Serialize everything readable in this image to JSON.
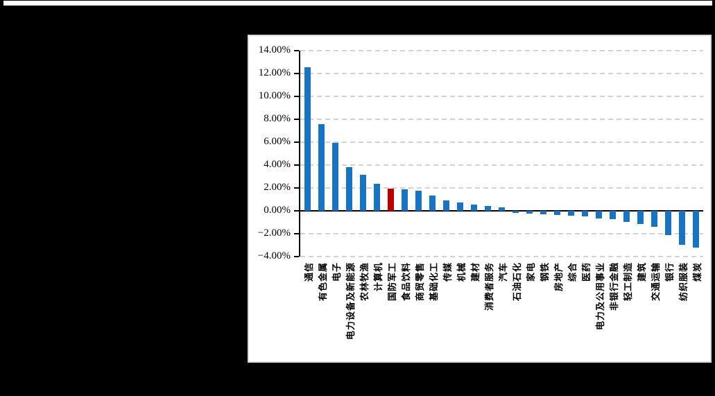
{
  "page": {
    "background_color": "#000000",
    "top_strip_color": "#ffffff",
    "panel_background": "#ffffff",
    "panel_border_color": "#d9d9d9"
  },
  "chart_data": {
    "type": "bar",
    "title": "",
    "legend": "none",
    "grid": "dashed-horizontal",
    "unit": "%",
    "bar_color": "#1774c4",
    "highlight": {
      "index": 6,
      "category": "国防军工",
      "color": "#c00000"
    },
    "categories": [
      "通信",
      "有色金属",
      "电子",
      "电力设备及新能源",
      "农林牧渔",
      "计算机",
      "国防军工",
      "食品饮料",
      "商贸零售",
      "基础化工",
      "传媒",
      "机械",
      "建材",
      "消费者服务",
      "汽车",
      "石油石化",
      "家电",
      "钢铁",
      "房地产",
      "综合",
      "医药",
      "电力及公用事业",
      "非银行金融",
      "轻工制造",
      "建筑",
      "交通运输",
      "银行",
      "纺织服装",
      "煤炭"
    ],
    "values": [
      12.55,
      7.6,
      5.95,
      3.8,
      3.15,
      2.35,
      1.95,
      1.85,
      1.75,
      1.35,
      0.9,
      0.75,
      0.55,
      0.4,
      0.3,
      -0.2,
      -0.25,
      -0.3,
      -0.35,
      -0.4,
      -0.5,
      -0.65,
      -0.7,
      -0.95,
      -1.15,
      -1.4,
      -2.15,
      -2.95,
      -3.2
    ],
    "y_axis": {
      "min": -4,
      "max": 14,
      "step": 2,
      "tick_values": [
        14,
        12,
        10,
        8,
        6,
        4,
        2,
        0,
        -2,
        -4
      ],
      "tick_labels": [
        "14.00%",
        "12.00%",
        "10.00%",
        "8.00%",
        "6.00%",
        "4.00%",
        "2.00%",
        "0.00%",
        "−2.00%",
        "−4.00%"
      ]
    },
    "axis_color": "#000000",
    "gridline_color": "#d2d2d2"
  }
}
